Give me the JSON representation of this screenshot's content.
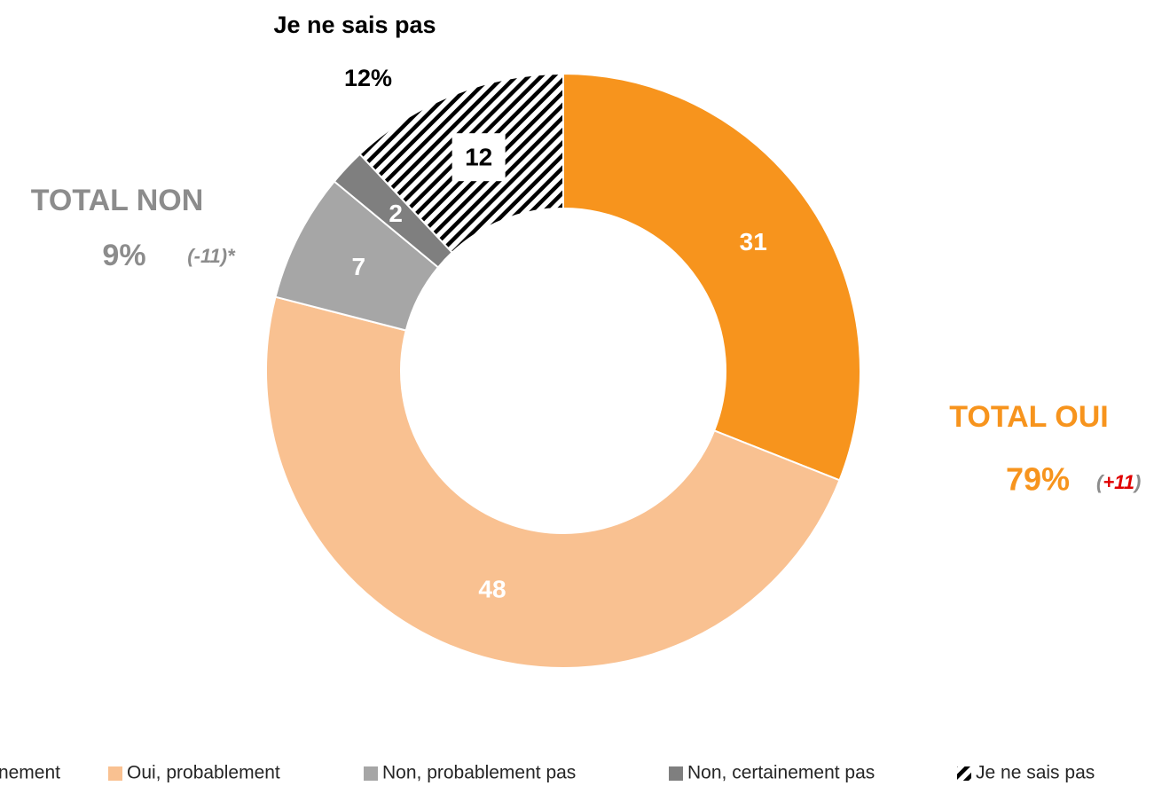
{
  "chart_data": {
    "type": "donut",
    "categories": [
      "Oui, certainement",
      "Oui, probablement",
      "Non, probablement pas",
      "Non, certainement pas",
      "Je ne sais pas"
    ],
    "values": [
      31,
      48,
      7,
      2,
      12
    ],
    "colors": [
      "#f7941d",
      "#f9c191",
      "#a6a6a6",
      "#7f7f7f",
      "#000000"
    ],
    "hatched": [
      false,
      false,
      false,
      false,
      true
    ],
    "label_colors": [
      "#ffffff",
      "#ffffff",
      "#ffffff",
      "#ffffff",
      "#000000"
    ],
    "annotations": [
      {
        "text": "Je ne sais pas",
        "color": "#000000"
      },
      {
        "text": "12%",
        "color": "#000000"
      },
      {
        "text": "TOTAL NON",
        "color": "#8c8c8c"
      },
      {
        "text": "9%",
        "color": "#8c8c8c"
      },
      {
        "text": "(-11)*",
        "color": "#8c8c8c"
      },
      {
        "text": "TOTAL OUI",
        "color": "#f7941d"
      },
      {
        "text": "79%",
        "color": "#f7941d"
      },
      {
        "text": "(",
        "color": "#8c8c8c"
      },
      {
        "text": "+11",
        "color": "#e00000"
      },
      {
        "text": ")",
        "color": "#8c8c8c"
      }
    ]
  }
}
